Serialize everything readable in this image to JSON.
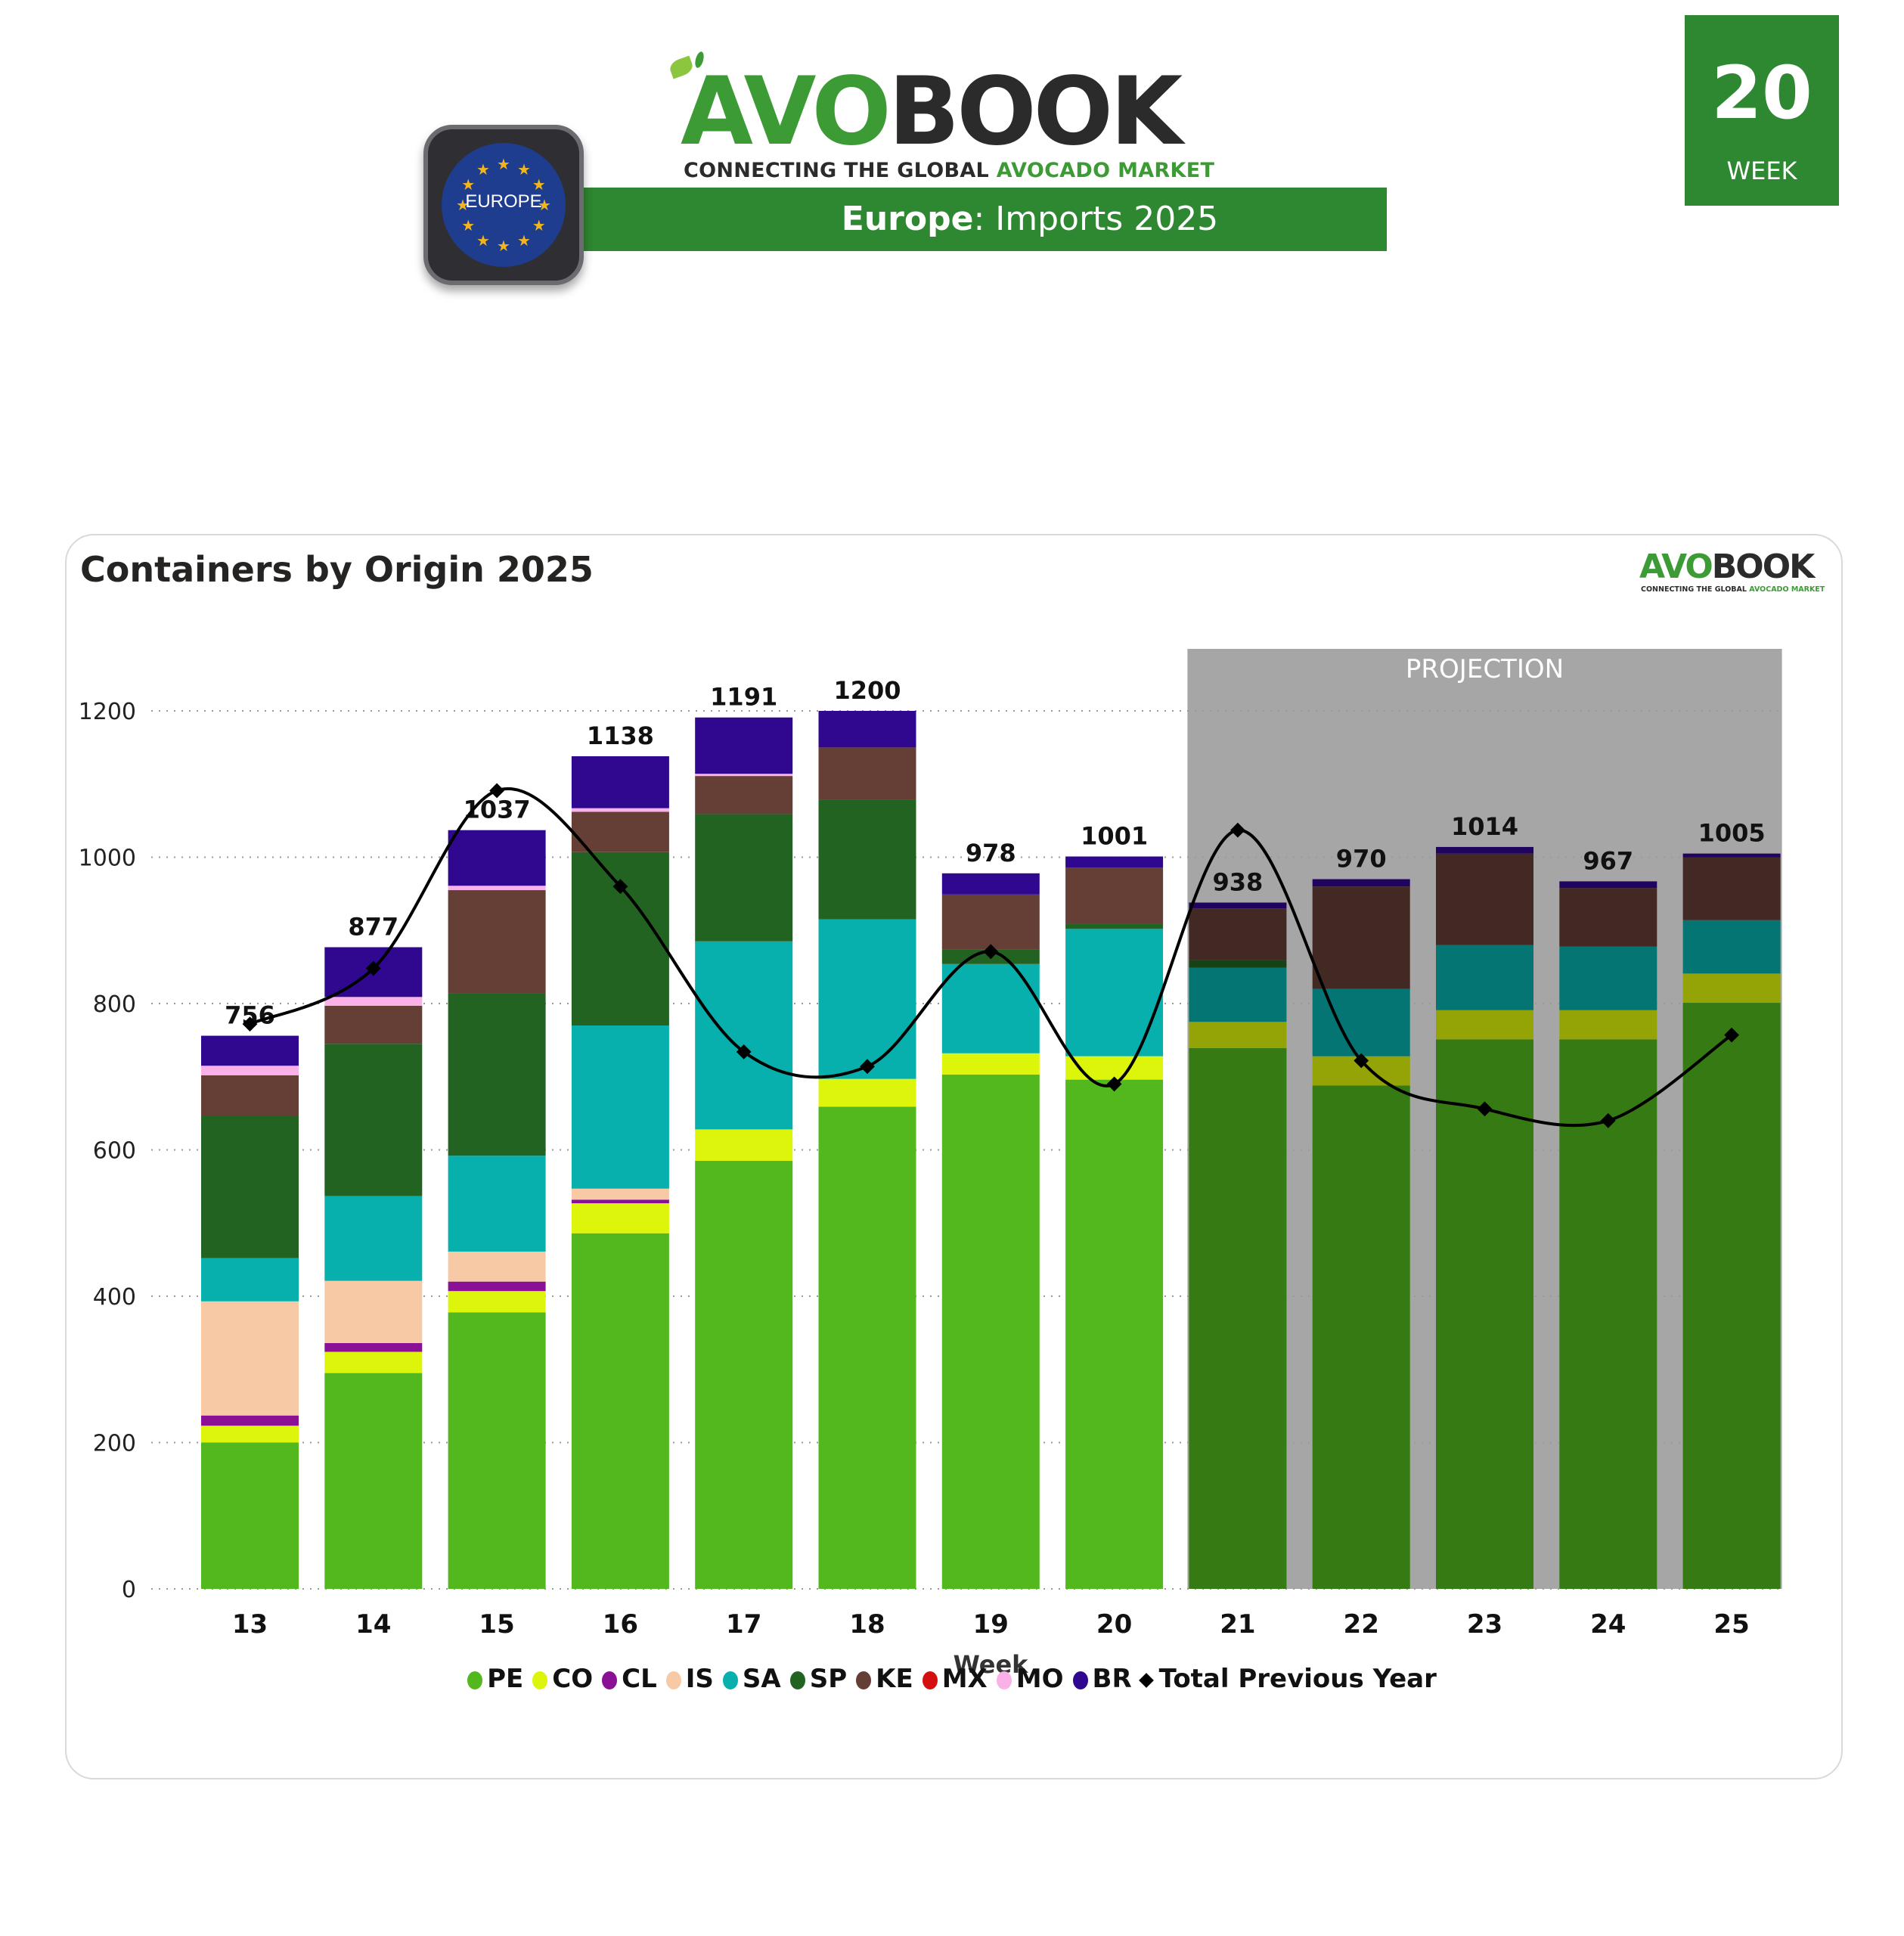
{
  "header": {
    "logo_avo": "AVO",
    "logo_book": "BOOK",
    "tagline_dark": "CONNECTING THE GLOBAL ",
    "tagline_green": "AVOCADO MARKET",
    "region_badge": "EUROPE",
    "banner_region": "Europe",
    "banner_rest": ": Imports 2025"
  },
  "week_box": {
    "number": "20",
    "label": "WEEK"
  },
  "card": {
    "title": "Containers by Origin 2025",
    "mini_logo_avo": "AVO",
    "mini_logo_book": "BOOK",
    "mini_tag_dark": "CONNECTING THE GLOBAL ",
    "mini_tag_green": "AVOCADO MARKET"
  },
  "colors": {
    "brand_green": "#2e8731",
    "projection_bg": "#a6a6a6"
  },
  "chart_data": {
    "type": "bar",
    "stacked": true,
    "title": "Containers by Origin 2025",
    "xlabel": "Week",
    "ylabel": "",
    "ylim": [
      0,
      1300
    ],
    "yticks": [
      0,
      200,
      400,
      600,
      800,
      1000,
      1200
    ],
    "grid": true,
    "legend_position": "bottom",
    "categories": [
      "13",
      "14",
      "15",
      "16",
      "17",
      "18",
      "19",
      "20",
      "21",
      "22",
      "23",
      "24",
      "25"
    ],
    "projection": {
      "label": "PROJECTION",
      "from": "21",
      "to": "25"
    },
    "series": [
      {
        "name": "PE",
        "color": "#52b81e",
        "proj_color": "#367a14",
        "values": [
          200,
          295,
          378,
          486,
          585,
          659,
          703,
          696,
          739,
          688,
          751,
          751,
          801
        ]
      },
      {
        "name": "CO",
        "color": "#dcf50a",
        "proj_color": "#94a306",
        "values": [
          23,
          29,
          29,
          41,
          43,
          38,
          29,
          32,
          36,
          40,
          40,
          40,
          40
        ]
      },
      {
        "name": "CL",
        "color": "#8a1196",
        "proj_color": "#5c0b64",
        "values": [
          14,
          12,
          13,
          5,
          0,
          0,
          0,
          0,
          0,
          0,
          0,
          0,
          0
        ]
      },
      {
        "name": "IS",
        "color": "#f7caa5",
        "proj_color": "#a5876e",
        "values": [
          156,
          85,
          41,
          15,
          0,
          0,
          0,
          0,
          0,
          0,
          0,
          0,
          0
        ]
      },
      {
        "name": "SA",
        "color": "#08b0ad",
        "proj_color": "#057573",
        "values": [
          59,
          116,
          131,
          223,
          257,
          218,
          122,
          174,
          74,
          92,
          89,
          87,
          73
        ]
      },
      {
        "name": "SP",
        "color": "#236322",
        "proj_color": "#174216",
        "values": [
          194,
          208,
          222,
          237,
          174,
          164,
          20,
          7,
          10,
          0,
          0,
          0,
          0
        ]
      },
      {
        "name": "KE",
        "color": "#653e36",
        "proj_color": "#432924",
        "values": [
          56,
          52,
          141,
          55,
          52,
          71,
          75,
          77,
          71,
          140,
          125,
          80,
          86
        ]
      },
      {
        "name": "MX",
        "color": "#d40f0f",
        "proj_color": "#8e0a0a",
        "values": [
          0,
          0,
          0,
          0,
          0,
          0,
          0,
          0,
          0,
          0,
          0,
          0,
          0
        ]
      },
      {
        "name": "MO",
        "color": "#f9b1e8",
        "proj_color": "#a6769b",
        "values": [
          13,
          12,
          6,
          5,
          3,
          0,
          0,
          0,
          0,
          0,
          0,
          0,
          0
        ]
      },
      {
        "name": "BR",
        "color": "#30078f",
        "proj_color": "#200560",
        "values": [
          41,
          68,
          76,
          71,
          77,
          50,
          29,
          15,
          8,
          10,
          9,
          9,
          5
        ]
      }
    ],
    "totals": [
      756,
      877,
      1037,
      1138,
      1191,
      1200,
      978,
      1001,
      938,
      970,
      1014,
      967,
      1005
    ],
    "line_series": {
      "name": "Total Previous Year",
      "color": "#000000",
      "marker": "diamond",
      "values": [
        772,
        848,
        1091,
        960,
        734,
        714,
        871,
        690,
        1037,
        722,
        656,
        640,
        757
      ]
    }
  }
}
